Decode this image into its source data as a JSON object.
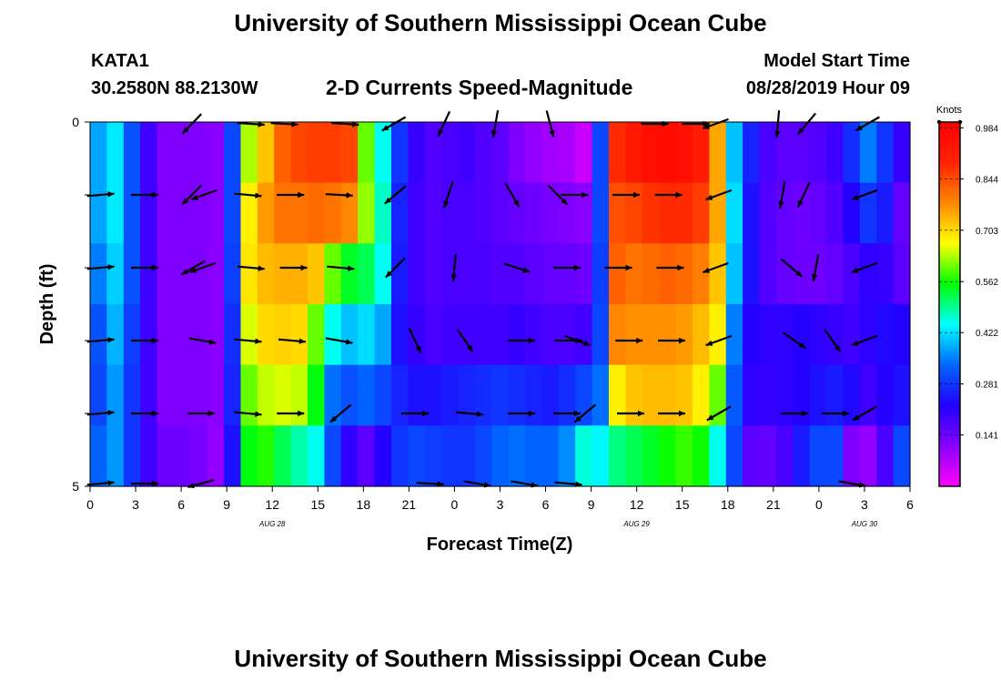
{
  "header": {
    "title": "University of Southern Mississippi Ocean Cube",
    "footer_title": "University of Southern Mississippi Ocean Cube",
    "station": "KATA1",
    "coords": "30.2580N 88.2130W",
    "subtitle": "2-D Currents Speed-Magnitude",
    "model_start_label": "Model Start Time",
    "model_start_value": "08/28/2019 Hour 09"
  },
  "chart_data": {
    "type": "heatmap",
    "xlabel": "Forecast Time(Z)",
    "ylabel": "Depth (ft)",
    "x_ticks": [
      "0",
      "3",
      "6",
      "9",
      "12",
      "15",
      "18",
      "21",
      "0",
      "3",
      "6",
      "9",
      "12",
      "15",
      "18",
      "21",
      "0",
      "3",
      "6"
    ],
    "y_ticks": [
      "0",
      "5"
    ],
    "date_labels": [
      {
        "label": "AUG 28",
        "at_hour": 12
      },
      {
        "label": "AUG 29",
        "at_hour": 36
      },
      {
        "label": "AUG 30",
        "at_hour": 51
      }
    ],
    "x_range_hours": [
      0,
      54
    ],
    "depth_range_ft": [
      0,
      5
    ],
    "colorbar": {
      "unit": "Knots",
      "ticks": [
        0.141,
        0.281,
        0.422,
        0.562,
        0.703,
        0.844,
        0.984
      ],
      "range": [
        0.0,
        1.0
      ],
      "colors": [
        "#ff00ff",
        "#8800ff",
        "#2200ff",
        "#0066ff",
        "#00ffff",
        "#00ff00",
        "#ffff00",
        "#ff8800",
        "#ff2200",
        "#ff0000"
      ]
    },
    "speed_rows": [
      [
        0.38,
        0.43,
        0.31,
        0.19,
        0.12,
        0.12,
        0.12,
        0.11,
        0.3,
        0.63,
        0.72,
        0.82,
        0.85,
        0.86,
        0.86,
        0.85,
        0.6,
        0.45,
        0.28,
        0.2,
        0.17,
        0.18,
        0.19,
        0.17,
        0.16,
        0.12,
        0.1,
        0.09,
        0.08,
        0.05,
        0.3,
        0.88,
        0.92,
        0.95,
        0.96,
        0.95,
        0.91,
        0.75,
        0.4,
        0.26,
        0.18,
        0.16,
        0.16,
        0.17,
        0.19,
        0.27,
        0.35,
        0.28,
        0.2
      ],
      [
        0.38,
        0.43,
        0.31,
        0.19,
        0.12,
        0.12,
        0.12,
        0.11,
        0.3,
        0.68,
        0.76,
        0.8,
        0.8,
        0.81,
        0.8,
        0.78,
        0.62,
        0.47,
        0.26,
        0.19,
        0.17,
        0.18,
        0.18,
        0.17,
        0.16,
        0.15,
        0.14,
        0.13,
        0.12,
        0.11,
        0.3,
        0.84,
        0.85,
        0.87,
        0.88,
        0.88,
        0.86,
        0.75,
        0.42,
        0.24,
        0.17,
        0.15,
        0.14,
        0.15,
        0.17,
        0.22,
        0.28,
        0.25,
        0.15
      ],
      [
        0.35,
        0.41,
        0.31,
        0.19,
        0.12,
        0.12,
        0.12,
        0.11,
        0.29,
        0.69,
        0.73,
        0.74,
        0.74,
        0.72,
        0.6,
        0.54,
        0.52,
        0.45,
        0.25,
        0.19,
        0.17,
        0.18,
        0.18,
        0.18,
        0.17,
        0.17,
        0.16,
        0.15,
        0.15,
        0.14,
        0.29,
        0.82,
        0.8,
        0.81,
        0.82,
        0.81,
        0.79,
        0.72,
        0.4,
        0.24,
        0.17,
        0.15,
        0.14,
        0.14,
        0.15,
        0.18,
        0.21,
        0.2,
        0.16
      ],
      [
        0.31,
        0.39,
        0.29,
        0.19,
        0.12,
        0.12,
        0.12,
        0.11,
        0.27,
        0.65,
        0.7,
        0.71,
        0.7,
        0.6,
        0.45,
        0.4,
        0.42,
        0.38,
        0.24,
        0.2,
        0.18,
        0.19,
        0.19,
        0.19,
        0.19,
        0.2,
        0.19,
        0.18,
        0.18,
        0.19,
        0.3,
        0.78,
        0.77,
        0.77,
        0.77,
        0.76,
        0.73,
        0.68,
        0.35,
        0.22,
        0.21,
        0.21,
        0.22,
        0.21,
        0.2,
        0.19,
        0.21,
        0.23,
        0.22
      ],
      [
        0.3,
        0.37,
        0.28,
        0.19,
        0.12,
        0.12,
        0.12,
        0.11,
        0.26,
        0.6,
        0.64,
        0.65,
        0.64,
        0.55,
        0.34,
        0.31,
        0.33,
        0.3,
        0.26,
        0.24,
        0.24,
        0.25,
        0.26,
        0.27,
        0.28,
        0.27,
        0.26,
        0.25,
        0.27,
        0.3,
        0.34,
        0.68,
        0.72,
        0.73,
        0.73,
        0.72,
        0.68,
        0.6,
        0.32,
        0.21,
        0.2,
        0.21,
        0.22,
        0.24,
        0.25,
        0.23,
        0.19,
        0.22,
        0.24
      ],
      [
        0.33,
        0.37,
        0.28,
        0.19,
        0.14,
        0.14,
        0.13,
        0.1,
        0.24,
        0.55,
        0.57,
        0.52,
        0.48,
        0.45,
        0.3,
        0.21,
        0.16,
        0.22,
        0.28,
        0.3,
        0.29,
        0.28,
        0.28,
        0.3,
        0.33,
        0.34,
        0.33,
        0.33,
        0.36,
        0.46,
        0.44,
        0.5,
        0.52,
        0.54,
        0.56,
        0.58,
        0.56,
        0.45,
        0.3,
        0.16,
        0.15,
        0.18,
        0.25,
        0.3,
        0.3,
        0.12,
        0.1,
        0.18,
        0.3
      ]
    ],
    "vectors": [
      [
        {
          "h": 6.7,
          "a": -134
        },
        {
          "h": 10.6,
          "a": -4
        },
        {
          "h": 12.8,
          "a": -3
        },
        {
          "h": 16.8,
          "a": -4
        },
        {
          "h": 20.0,
          "a": -150
        },
        {
          "h": 23.3,
          "a": -115
        },
        {
          "h": 26.7,
          "a": -100
        },
        {
          "h": 30.3,
          "a": -75
        },
        {
          "h": 37.2,
          "a": 0
        },
        {
          "h": 39.9,
          "a": 0
        },
        {
          "h": 41.2,
          "a": -160
        },
        {
          "h": 45.3,
          "a": -95
        },
        {
          "h": 47.2,
          "a": -130
        },
        {
          "h": 51.2,
          "a": -150
        }
      ],
      [
        {
          "h": 0.7,
          "a": 5
        },
        {
          "h": 3.6,
          "a": 0
        },
        {
          "h": 6.7,
          "a": -135
        },
        {
          "h": 7.5,
          "a": -160
        },
        {
          "h": 10.4,
          "a": -5
        },
        {
          "h": 13.2,
          "a": 0
        },
        {
          "h": 16.4,
          "a": -3
        },
        {
          "h": 20.1,
          "a": -140
        },
        {
          "h": 23.6,
          "a": -108
        },
        {
          "h": 27.8,
          "a": -60
        },
        {
          "h": 30.8,
          "a": -45
        },
        {
          "h": 31.9,
          "a": 0
        },
        {
          "h": 35.3,
          "a": 0
        },
        {
          "h": 38.1,
          "a": 0
        },
        {
          "h": 41.4,
          "a": -160
        },
        {
          "h": 45.6,
          "a": -100
        },
        {
          "h": 47.0,
          "a": -115
        },
        {
          "h": 51.0,
          "a": -160
        }
      ],
      [
        {
          "h": 0.7,
          "a": 5
        },
        {
          "h": 3.6,
          "a": 0
        },
        {
          "h": 6.8,
          "a": -150
        },
        {
          "h": 7.4,
          "a": -160
        },
        {
          "h": 10.6,
          "a": -5
        },
        {
          "h": 13.4,
          "a": 0
        },
        {
          "h": 16.5,
          "a": -5
        },
        {
          "h": 20.1,
          "a": -135
        },
        {
          "h": 24.0,
          "a": -95
        },
        {
          "h": 28.1,
          "a": -18
        },
        {
          "h": 31.4,
          "a": 0
        },
        {
          "h": 34.8,
          "a": 0
        },
        {
          "h": 38.2,
          "a": 0
        },
        {
          "h": 41.2,
          "a": -160
        },
        {
          "h": 46.2,
          "a": -40
        },
        {
          "h": 47.8,
          "a": -100
        },
        {
          "h": 51.0,
          "a": -160
        }
      ],
      [
        {
          "h": 0.7,
          "a": 5
        },
        {
          "h": 3.6,
          "a": 0
        },
        {
          "h": 7.4,
          "a": -10
        },
        {
          "h": 10.4,
          "a": -5
        },
        {
          "h": 13.3,
          "a": -5
        },
        {
          "h": 16.4,
          "a": -10
        },
        {
          "h": 21.4,
          "a": -65
        },
        {
          "h": 24.7,
          "a": -55
        },
        {
          "h": 28.4,
          "a": 0
        },
        {
          "h": 31.5,
          "a": 0
        },
        {
          "h": 32.1,
          "a": -20
        },
        {
          "h": 35.5,
          "a": 0
        },
        {
          "h": 38.3,
          "a": 0
        },
        {
          "h": 41.4,
          "a": -160
        },
        {
          "h": 46.4,
          "a": -35
        },
        {
          "h": 48.9,
          "a": -55
        },
        {
          "h": 51.0,
          "a": -160
        }
      ],
      [
        {
          "h": 0.7,
          "a": 5
        },
        {
          "h": 3.6,
          "a": 0
        },
        {
          "h": 7.3,
          "a": 0
        },
        {
          "h": 10.4,
          "a": -5
        },
        {
          "h": 13.2,
          "a": 0
        },
        {
          "h": 16.5,
          "a": -140
        },
        {
          "h": 21.4,
          "a": 0
        },
        {
          "h": 25.0,
          "a": -5
        },
        {
          "h": 28.4,
          "a": 0
        },
        {
          "h": 31.4,
          "a": 0
        },
        {
          "h": 32.6,
          "a": -140
        },
        {
          "h": 35.6,
          "a": 0
        },
        {
          "h": 38.3,
          "a": 0
        },
        {
          "h": 41.4,
          "a": -150
        },
        {
          "h": 46.4,
          "a": 0
        },
        {
          "h": 49.1,
          "a": 0
        },
        {
          "h": 51.0,
          "a": -150
        }
      ],
      [
        {
          "h": 0.7,
          "a": 5
        },
        {
          "h": 3.6,
          "a": 0
        },
        {
          "h": 7.3,
          "a": -165
        },
        {
          "h": 22.4,
          "a": -3
        },
        {
          "h": 25.5,
          "a": -10
        },
        {
          "h": 28.6,
          "a": -10
        },
        {
          "h": 31.5,
          "a": -5
        },
        {
          "h": 50.2,
          "a": -10
        }
      ]
    ]
  }
}
